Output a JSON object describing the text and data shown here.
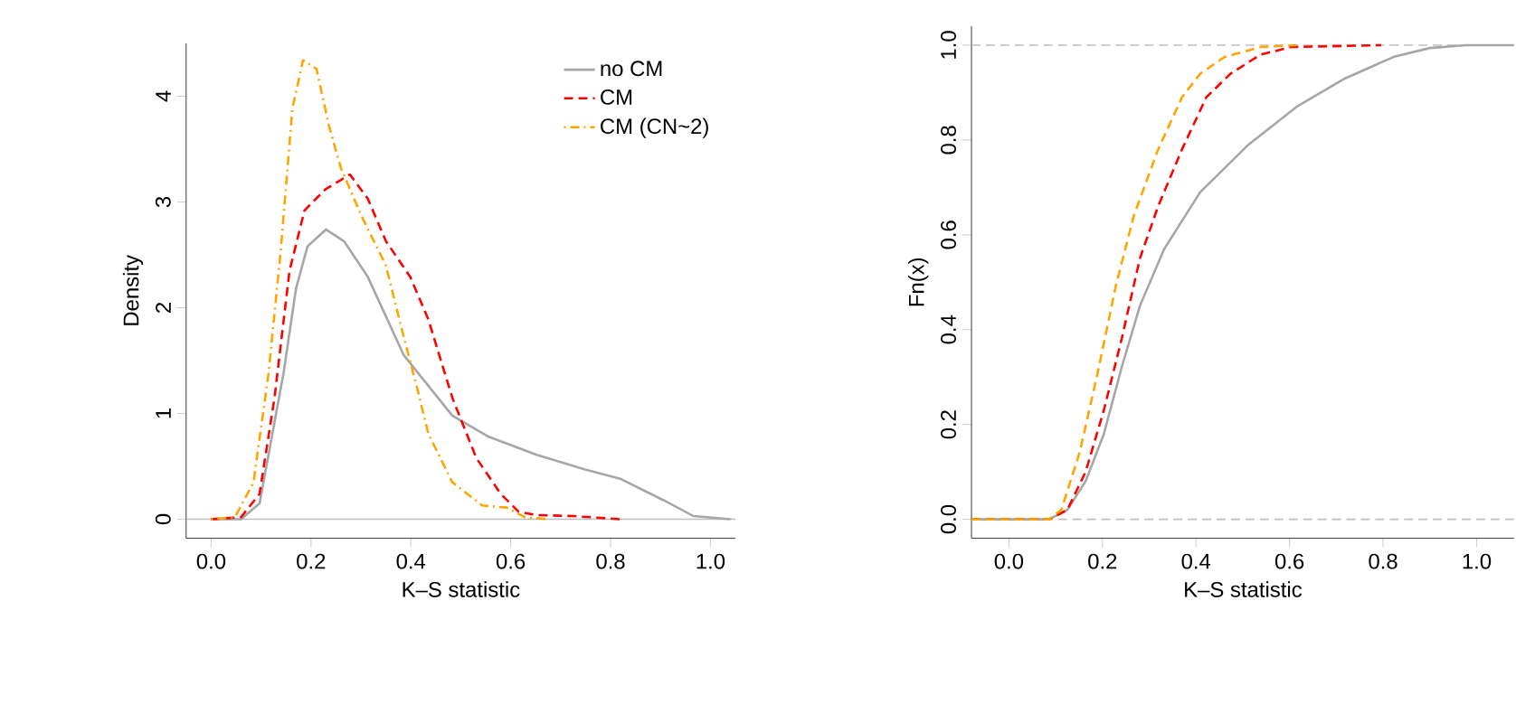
{
  "chart_data": [
    {
      "type": "line",
      "xlabel": "K–S statistic",
      "ylabel": "Density",
      "legend": "top right",
      "xlim": [
        -0.05,
        1.05
      ],
      "ylim": [
        -0.18,
        4.5
      ],
      "xticks": [
        {
          "value": 0,
          "label": "0.0"
        },
        {
          "value": 0.2,
          "label": "0.2"
        },
        {
          "value": 0.4,
          "label": "0.4"
        },
        {
          "value": 0.6,
          "label": "0.6"
        },
        {
          "value": 0.8,
          "label": "0.8"
        },
        {
          "value": 1,
          "label": "1.0"
        }
      ],
      "yticks": [
        0,
        1,
        2,
        3,
        4
      ],
      "ref_lines": [
        {
          "axis": "y",
          "value": 0,
          "color": "#bebebe",
          "line_style": "solid"
        }
      ],
      "series": [
        {
          "name": "no CM",
          "color": "#a6a6a6",
          "line_style": "solid",
          "x": [
            0,
            0.06,
            0.097,
            0.145,
            0.17,
            0.193,
            0.23,
            0.266,
            0.314,
            0.386,
            0.483,
            0.556,
            0.652,
            0.749,
            0.821,
            0.906,
            0.966,
            1.04
          ],
          "values": [
            0,
            0,
            0.15,
            1.38,
            2.18,
            2.58,
            2.74,
            2.63,
            2.29,
            1.55,
            0.98,
            0.78,
            0.61,
            0.47,
            0.38,
            0.18,
            0.03,
            0
          ]
        },
        {
          "name": "CM",
          "color": "#ff0000",
          "line_style": "dashed",
          "x": [
            0,
            0.06,
            0.097,
            0.127,
            0.157,
            0.187,
            0.229,
            0.278,
            0.314,
            0.35,
            0.399,
            0.435,
            0.483,
            0.531,
            0.58,
            0.616,
            0.652,
            0.725,
            0.821
          ],
          "values": [
            0,
            0.02,
            0.24,
            1.15,
            2.35,
            2.92,
            3.12,
            3.26,
            3.03,
            2.63,
            2.29,
            1.89,
            1.15,
            0.58,
            0.24,
            0.07,
            0.04,
            0.03,
            0
          ]
        },
        {
          "name": "CM (CN~2)",
          "color": "#ffa500",
          "line_style": "dashdot",
          "x": [
            0,
            0.048,
            0.085,
            0.115,
            0.139,
            0.163,
            0.184,
            0.211,
            0.236,
            0.26,
            0.302,
            0.35,
            0.386,
            0.411,
            0.435,
            0.483,
            0.543,
            0.592,
            0.628,
            0.676
          ],
          "values": [
            0,
            0.02,
            0.35,
            1.38,
            2.52,
            3.89,
            4.34,
            4.26,
            3.72,
            3.32,
            2.86,
            2.4,
            1.72,
            1.27,
            0.81,
            0.35,
            0.13,
            0.11,
            0.02,
            0
          ]
        }
      ]
    },
    {
      "type": "line",
      "xlabel": "K–S statistic",
      "ylabel": "Fn(x)",
      "legend": false,
      "xlim": [
        -0.08,
        1.08
      ],
      "ylim": [
        -0.04,
        1.04
      ],
      "xticks": [
        {
          "value": 0,
          "label": "0.0"
        },
        {
          "value": 0.2,
          "label": "0.2"
        },
        {
          "value": 0.4,
          "label": "0.4"
        },
        {
          "value": 0.6,
          "label": "0.6"
        },
        {
          "value": 0.8,
          "label": "0.8"
        },
        {
          "value": 1,
          "label": "1.0"
        }
      ],
      "yticks": [
        {
          "value": 0,
          "label": "0.0"
        },
        {
          "value": 0.2,
          "label": "0.2"
        },
        {
          "value": 0.4,
          "label": "0.4"
        },
        {
          "value": 0.6,
          "label": "0.6"
        },
        {
          "value": 0.8,
          "label": "0.8"
        },
        {
          "value": 1,
          "label": "1.0"
        }
      ],
      "ref_lines": [
        {
          "axis": "y",
          "value": 0,
          "color": "#bebebe",
          "line_style": "dashed"
        },
        {
          "axis": "y",
          "value": 1,
          "color": "#bebebe",
          "line_style": "dashed"
        }
      ],
      "series": [
        {
          "color": "#a6a6a6",
          "line_style": "solid",
          "x": [
            -0.08,
            0.086,
            0.125,
            0.164,
            0.203,
            0.241,
            0.28,
            0.332,
            0.409,
            0.512,
            0.615,
            0.719,
            0.822,
            0.9,
            0.977,
            1.08
          ],
          "values": [
            0,
            0,
            0.02,
            0.08,
            0.18,
            0.32,
            0.45,
            0.57,
            0.69,
            0.79,
            0.87,
            0.93,
            0.975,
            0.994,
            1,
            1
          ]
        },
        {
          "color": "#ff0000",
          "line_style": "dashed",
          "x": [
            -0.08,
            0.086,
            0.125,
            0.164,
            0.203,
            0.241,
            0.28,
            0.319,
            0.37,
            0.422,
            0.474,
            0.538,
            0.603,
            0.796
          ],
          "values": [
            0,
            0,
            0.02,
            0.1,
            0.23,
            0.38,
            0.55,
            0.66,
            0.78,
            0.89,
            0.94,
            0.98,
            0.996,
            1
          ]
        },
        {
          "color": "#ffa500",
          "line_style": "dashed",
          "x": [
            -0.08,
            0.086,
            0.112,
            0.151,
            0.19,
            0.228,
            0.267,
            0.319,
            0.37,
            0.409,
            0.461,
            0.538,
            0.615
          ],
          "values": [
            0,
            0,
            0.02,
            0.14,
            0.31,
            0.49,
            0.64,
            0.78,
            0.89,
            0.94,
            0.975,
            0.996,
            1
          ]
        }
      ]
    }
  ]
}
